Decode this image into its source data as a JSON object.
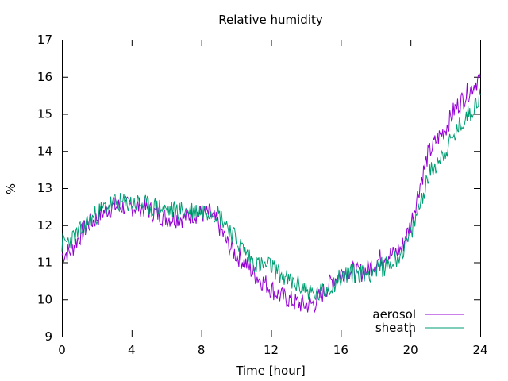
{
  "chart_data": {
    "type": "line",
    "title": "Relative humidity",
    "xlabel": "Time [hour]",
    "ylabel": "%",
    "xlim": [
      0,
      24
    ],
    "ylim": [
      9,
      17
    ],
    "xticks": [
      0,
      4,
      8,
      12,
      16,
      20,
      24
    ],
    "yticks": [
      9,
      10,
      11,
      12,
      13,
      14,
      15,
      16,
      17
    ],
    "grid": false,
    "legend_position": "bottom-right",
    "series": [
      {
        "name": "aerosol",
        "color": "#9400d3",
        "x": [
          0,
          0.5,
          1,
          1.5,
          2,
          2.5,
          3,
          3.5,
          4,
          4.5,
          5,
          5.5,
          6,
          6.5,
          7,
          7.5,
          8,
          8.5,
          9,
          9.5,
          10,
          10.5,
          11,
          11.5,
          12,
          12.5,
          13,
          13.5,
          14,
          14.5,
          15,
          15.5,
          16,
          16.5,
          17,
          17.5,
          18,
          18.5,
          19,
          19.5,
          20,
          20.5,
          21,
          21.5,
          22,
          22.5,
          23,
          23.5,
          24
        ],
        "values": [
          11.2,
          11.3,
          11.7,
          12.0,
          12.2,
          12.4,
          12.5,
          12.5,
          12.5,
          12.5,
          12.4,
          12.3,
          12.2,
          12.2,
          12.2,
          12.3,
          12.3,
          12.3,
          12.0,
          11.5,
          11.2,
          11.0,
          10.7,
          10.5,
          10.3,
          10.1,
          10.0,
          9.9,
          9.85,
          9.9,
          10.2,
          10.5,
          10.7,
          10.8,
          10.7,
          10.8,
          11.0,
          11.2,
          11.2,
          11.4,
          12.0,
          13.0,
          13.9,
          14.3,
          14.6,
          15.1,
          15.4,
          15.7,
          16.0
        ]
      },
      {
        "name": "sheath",
        "color": "#009e73",
        "x": [
          0,
          0.5,
          1,
          1.5,
          2,
          2.5,
          3,
          3.5,
          4,
          4.5,
          5,
          5.5,
          6,
          6.5,
          7,
          7.5,
          8,
          8.5,
          9,
          9.5,
          10,
          10.5,
          11,
          11.5,
          12,
          12.5,
          13,
          13.5,
          14,
          14.5,
          15,
          15.5,
          16,
          16.5,
          17,
          17.5,
          18,
          18.5,
          19,
          19.5,
          20,
          20.5,
          21,
          21.5,
          22,
          22.5,
          23,
          23.5,
          24
        ],
        "values": [
          11.5,
          11.6,
          11.8,
          12.1,
          12.3,
          12.5,
          12.6,
          12.6,
          12.6,
          12.6,
          12.5,
          12.5,
          12.4,
          12.4,
          12.4,
          12.4,
          12.4,
          12.4,
          12.3,
          12.0,
          11.6,
          11.3,
          11.0,
          10.9,
          10.9,
          10.7,
          10.5,
          10.4,
          10.3,
          10.1,
          10.2,
          10.4,
          10.6,
          10.7,
          10.7,
          10.7,
          10.8,
          10.9,
          11.0,
          11.3,
          11.7,
          12.5,
          13.3,
          13.7,
          14.0,
          14.4,
          14.8,
          15.1,
          15.5
        ]
      }
    ]
  }
}
